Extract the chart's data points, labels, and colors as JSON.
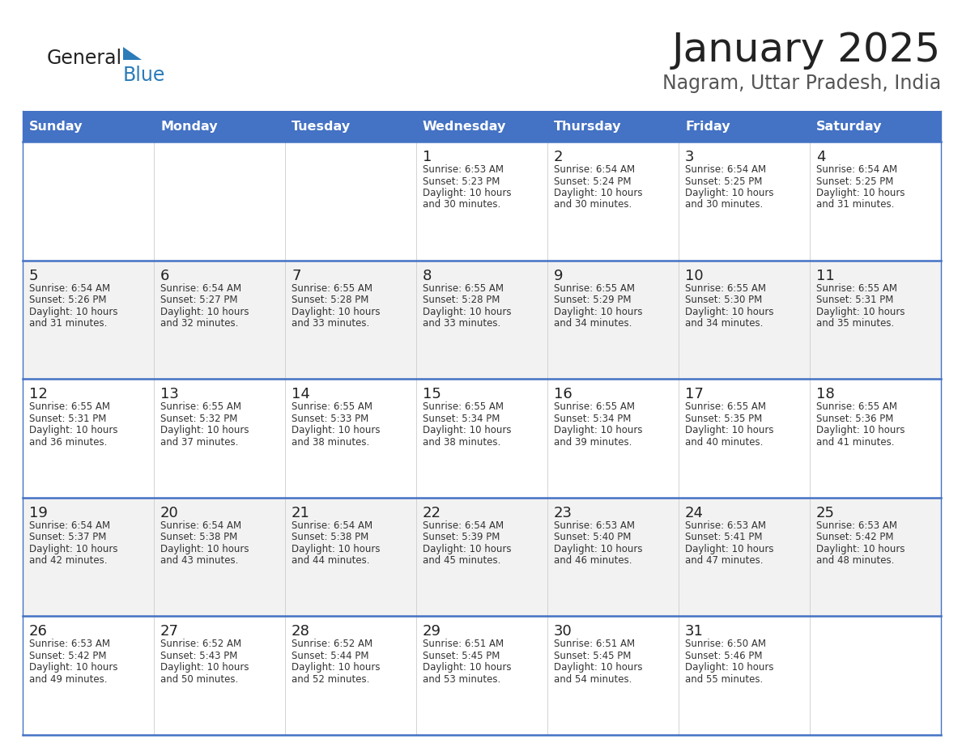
{
  "title": "January 2025",
  "subtitle": "Nagram, Uttar Pradesh, India",
  "header_bg_color": "#4472C4",
  "header_text_color": "#FFFFFF",
  "days_of_week": [
    "Sunday",
    "Monday",
    "Tuesday",
    "Wednesday",
    "Thursday",
    "Friday",
    "Saturday"
  ],
  "bg_color": "#FFFFFF",
  "alt_row_color": "#F2F2F2",
  "cell_border_color": "#4472C4",
  "title_color": "#222222",
  "subtitle_color": "#555555",
  "day_num_color": "#222222",
  "cell_text_color": "#333333",
  "logo_general_color": "#222222",
  "logo_blue_color": "#2B7BB9",
  "logo_triangle_color": "#2B7BB9",
  "calendar": [
    [
      {
        "day": "",
        "sunrise": "",
        "sunset": "",
        "daylight": ""
      },
      {
        "day": "",
        "sunrise": "",
        "sunset": "",
        "daylight": ""
      },
      {
        "day": "",
        "sunrise": "",
        "sunset": "",
        "daylight": ""
      },
      {
        "day": "1",
        "sunrise": "Sunrise: 6:53 AM",
        "sunset": "Sunset: 5:23 PM",
        "daylight": "Daylight: 10 hours\nand 30 minutes."
      },
      {
        "day": "2",
        "sunrise": "Sunrise: 6:54 AM",
        "sunset": "Sunset: 5:24 PM",
        "daylight": "Daylight: 10 hours\nand 30 minutes."
      },
      {
        "day": "3",
        "sunrise": "Sunrise: 6:54 AM",
        "sunset": "Sunset: 5:25 PM",
        "daylight": "Daylight: 10 hours\nand 30 minutes."
      },
      {
        "day": "4",
        "sunrise": "Sunrise: 6:54 AM",
        "sunset": "Sunset: 5:25 PM",
        "daylight": "Daylight: 10 hours\nand 31 minutes."
      }
    ],
    [
      {
        "day": "5",
        "sunrise": "Sunrise: 6:54 AM",
        "sunset": "Sunset: 5:26 PM",
        "daylight": "Daylight: 10 hours\nand 31 minutes."
      },
      {
        "day": "6",
        "sunrise": "Sunrise: 6:54 AM",
        "sunset": "Sunset: 5:27 PM",
        "daylight": "Daylight: 10 hours\nand 32 minutes."
      },
      {
        "day": "7",
        "sunrise": "Sunrise: 6:55 AM",
        "sunset": "Sunset: 5:28 PM",
        "daylight": "Daylight: 10 hours\nand 33 minutes."
      },
      {
        "day": "8",
        "sunrise": "Sunrise: 6:55 AM",
        "sunset": "Sunset: 5:28 PM",
        "daylight": "Daylight: 10 hours\nand 33 minutes."
      },
      {
        "day": "9",
        "sunrise": "Sunrise: 6:55 AM",
        "sunset": "Sunset: 5:29 PM",
        "daylight": "Daylight: 10 hours\nand 34 minutes."
      },
      {
        "day": "10",
        "sunrise": "Sunrise: 6:55 AM",
        "sunset": "Sunset: 5:30 PM",
        "daylight": "Daylight: 10 hours\nand 34 minutes."
      },
      {
        "day": "11",
        "sunrise": "Sunrise: 6:55 AM",
        "sunset": "Sunset: 5:31 PM",
        "daylight": "Daylight: 10 hours\nand 35 minutes."
      }
    ],
    [
      {
        "day": "12",
        "sunrise": "Sunrise: 6:55 AM",
        "sunset": "Sunset: 5:31 PM",
        "daylight": "Daylight: 10 hours\nand 36 minutes."
      },
      {
        "day": "13",
        "sunrise": "Sunrise: 6:55 AM",
        "sunset": "Sunset: 5:32 PM",
        "daylight": "Daylight: 10 hours\nand 37 minutes."
      },
      {
        "day": "14",
        "sunrise": "Sunrise: 6:55 AM",
        "sunset": "Sunset: 5:33 PM",
        "daylight": "Daylight: 10 hours\nand 38 minutes."
      },
      {
        "day": "15",
        "sunrise": "Sunrise: 6:55 AM",
        "sunset": "Sunset: 5:34 PM",
        "daylight": "Daylight: 10 hours\nand 38 minutes."
      },
      {
        "day": "16",
        "sunrise": "Sunrise: 6:55 AM",
        "sunset": "Sunset: 5:34 PM",
        "daylight": "Daylight: 10 hours\nand 39 minutes."
      },
      {
        "day": "17",
        "sunrise": "Sunrise: 6:55 AM",
        "sunset": "Sunset: 5:35 PM",
        "daylight": "Daylight: 10 hours\nand 40 minutes."
      },
      {
        "day": "18",
        "sunrise": "Sunrise: 6:55 AM",
        "sunset": "Sunset: 5:36 PM",
        "daylight": "Daylight: 10 hours\nand 41 minutes."
      }
    ],
    [
      {
        "day": "19",
        "sunrise": "Sunrise: 6:54 AM",
        "sunset": "Sunset: 5:37 PM",
        "daylight": "Daylight: 10 hours\nand 42 minutes."
      },
      {
        "day": "20",
        "sunrise": "Sunrise: 6:54 AM",
        "sunset": "Sunset: 5:38 PM",
        "daylight": "Daylight: 10 hours\nand 43 minutes."
      },
      {
        "day": "21",
        "sunrise": "Sunrise: 6:54 AM",
        "sunset": "Sunset: 5:38 PM",
        "daylight": "Daylight: 10 hours\nand 44 minutes."
      },
      {
        "day": "22",
        "sunrise": "Sunrise: 6:54 AM",
        "sunset": "Sunset: 5:39 PM",
        "daylight": "Daylight: 10 hours\nand 45 minutes."
      },
      {
        "day": "23",
        "sunrise": "Sunrise: 6:53 AM",
        "sunset": "Sunset: 5:40 PM",
        "daylight": "Daylight: 10 hours\nand 46 minutes."
      },
      {
        "day": "24",
        "sunrise": "Sunrise: 6:53 AM",
        "sunset": "Sunset: 5:41 PM",
        "daylight": "Daylight: 10 hours\nand 47 minutes."
      },
      {
        "day": "25",
        "sunrise": "Sunrise: 6:53 AM",
        "sunset": "Sunset: 5:42 PM",
        "daylight": "Daylight: 10 hours\nand 48 minutes."
      }
    ],
    [
      {
        "day": "26",
        "sunrise": "Sunrise: 6:53 AM",
        "sunset": "Sunset: 5:42 PM",
        "daylight": "Daylight: 10 hours\nand 49 minutes."
      },
      {
        "day": "27",
        "sunrise": "Sunrise: 6:52 AM",
        "sunset": "Sunset: 5:43 PM",
        "daylight": "Daylight: 10 hours\nand 50 minutes."
      },
      {
        "day": "28",
        "sunrise": "Sunrise: 6:52 AM",
        "sunset": "Sunset: 5:44 PM",
        "daylight": "Daylight: 10 hours\nand 52 minutes."
      },
      {
        "day": "29",
        "sunrise": "Sunrise: 6:51 AM",
        "sunset": "Sunset: 5:45 PM",
        "daylight": "Daylight: 10 hours\nand 53 minutes."
      },
      {
        "day": "30",
        "sunrise": "Sunrise: 6:51 AM",
        "sunset": "Sunset: 5:45 PM",
        "daylight": "Daylight: 10 hours\nand 54 minutes."
      },
      {
        "day": "31",
        "sunrise": "Sunrise: 6:50 AM",
        "sunset": "Sunset: 5:46 PM",
        "daylight": "Daylight: 10 hours\nand 55 minutes."
      },
      {
        "day": "",
        "sunrise": "",
        "sunset": "",
        "daylight": ""
      }
    ]
  ]
}
